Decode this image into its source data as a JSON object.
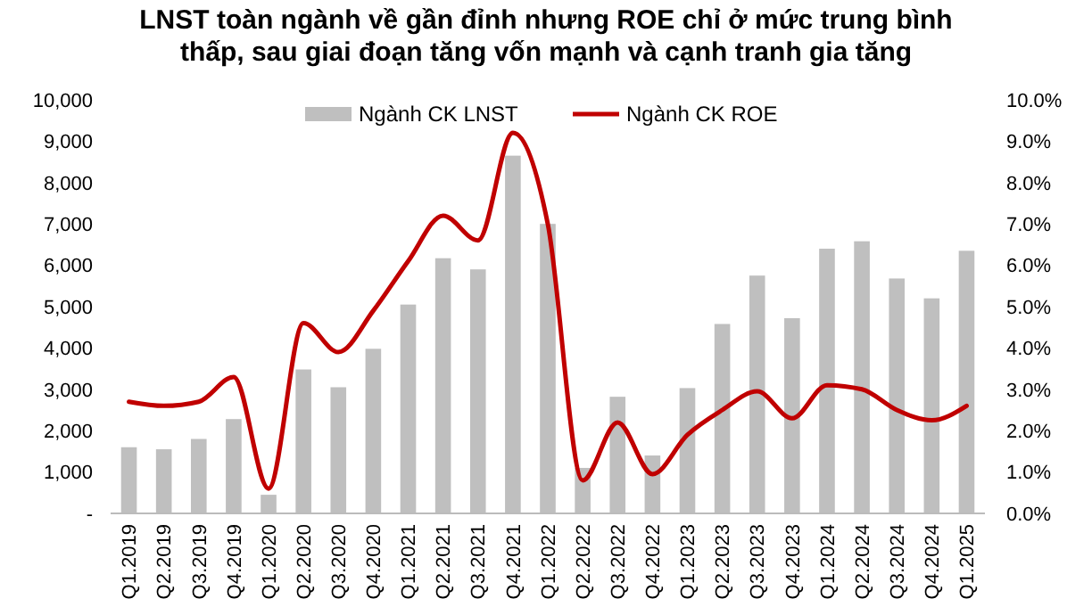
{
  "chart_data": {
    "type": "bar",
    "title": "LNST toàn ngành về gần đỉnh nhưng ROE chỉ ở mức trung bình thấp, sau giai đoạn tăng vốn mạnh và cạnh tranh gia tăng",
    "categories": [
      "Q1.2019",
      "Q2.2019",
      "Q3.2019",
      "Q4.2019",
      "Q1.2020",
      "Q2.2020",
      "Q3.2020",
      "Q4.2020",
      "Q1.2021",
      "Q2.2021",
      "Q3.2021",
      "Q4.2021",
      "Q1.2022",
      "Q2.2022",
      "Q3.2022",
      "Q4.2022",
      "Q1.2023",
      "Q2.2023",
      "Q3.2023",
      "Q4.2023",
      "Q1.2024",
      "Q2.2024",
      "Q3.2024",
      "Q4.2024",
      "Q1.2025"
    ],
    "series": [
      {
        "name": "Ngành CK LNST",
        "color": "#bfbfbf",
        "values": [
          1600,
          1550,
          1800,
          2280,
          450,
          3480,
          3050,
          3980,
          5050,
          6170,
          5900,
          8650,
          7000,
          1100,
          2820,
          1400,
          3030,
          4580,
          5750,
          4720,
          6400,
          6580,
          5680,
          5200,
          6350
        ]
      },
      {
        "name": "Ngành CK ROE",
        "type": "line",
        "axis": "y2",
        "color": "#c00000",
        "values": [
          2.7,
          2.6,
          2.7,
          3.3,
          0.6,
          4.6,
          3.9,
          4.9,
          6.1,
          7.2,
          6.6,
          9.2,
          7.0,
          0.8,
          2.2,
          0.95,
          1.9,
          2.5,
          2.95,
          2.3,
          3.1,
          3.0,
          2.5,
          2.25,
          2.6
        ]
      }
    ],
    "ylim": [
      0,
      10000
    ],
    "yticks": [
      {
        "value": 0,
        "label": "-"
      },
      {
        "value": 1000,
        "label": "1,000"
      },
      {
        "value": 2000,
        "label": "2,000"
      },
      {
        "value": 3000,
        "label": "3,000"
      },
      {
        "value": 4000,
        "label": "4,000"
      },
      {
        "value": 5000,
        "label": "5,000"
      },
      {
        "value": 6000,
        "label": "6,000"
      },
      {
        "value": 7000,
        "label": "7,000"
      },
      {
        "value": 8000,
        "label": "8,000"
      },
      {
        "value": 9000,
        "label": "9,000"
      },
      {
        "value": 10000,
        "label": "10,000"
      }
    ],
    "y2lim": [
      0,
      10
    ],
    "y2ticks": [
      {
        "value": 0,
        "label": "0.0%"
      },
      {
        "value": 1,
        "label": "1.0%"
      },
      {
        "value": 2,
        "label": "2.0%"
      },
      {
        "value": 3,
        "label": "3.0%"
      },
      {
        "value": 4,
        "label": "4.0%"
      },
      {
        "value": 5,
        "label": "5.0%"
      },
      {
        "value": 6,
        "label": "6.0%"
      },
      {
        "value": 7,
        "label": "7.0%"
      },
      {
        "value": 8,
        "label": "8.0%"
      },
      {
        "value": 9,
        "label": "9.0%"
      },
      {
        "value": 10,
        "label": "10.0%"
      }
    ],
    "legend": "top",
    "grid": false
  }
}
